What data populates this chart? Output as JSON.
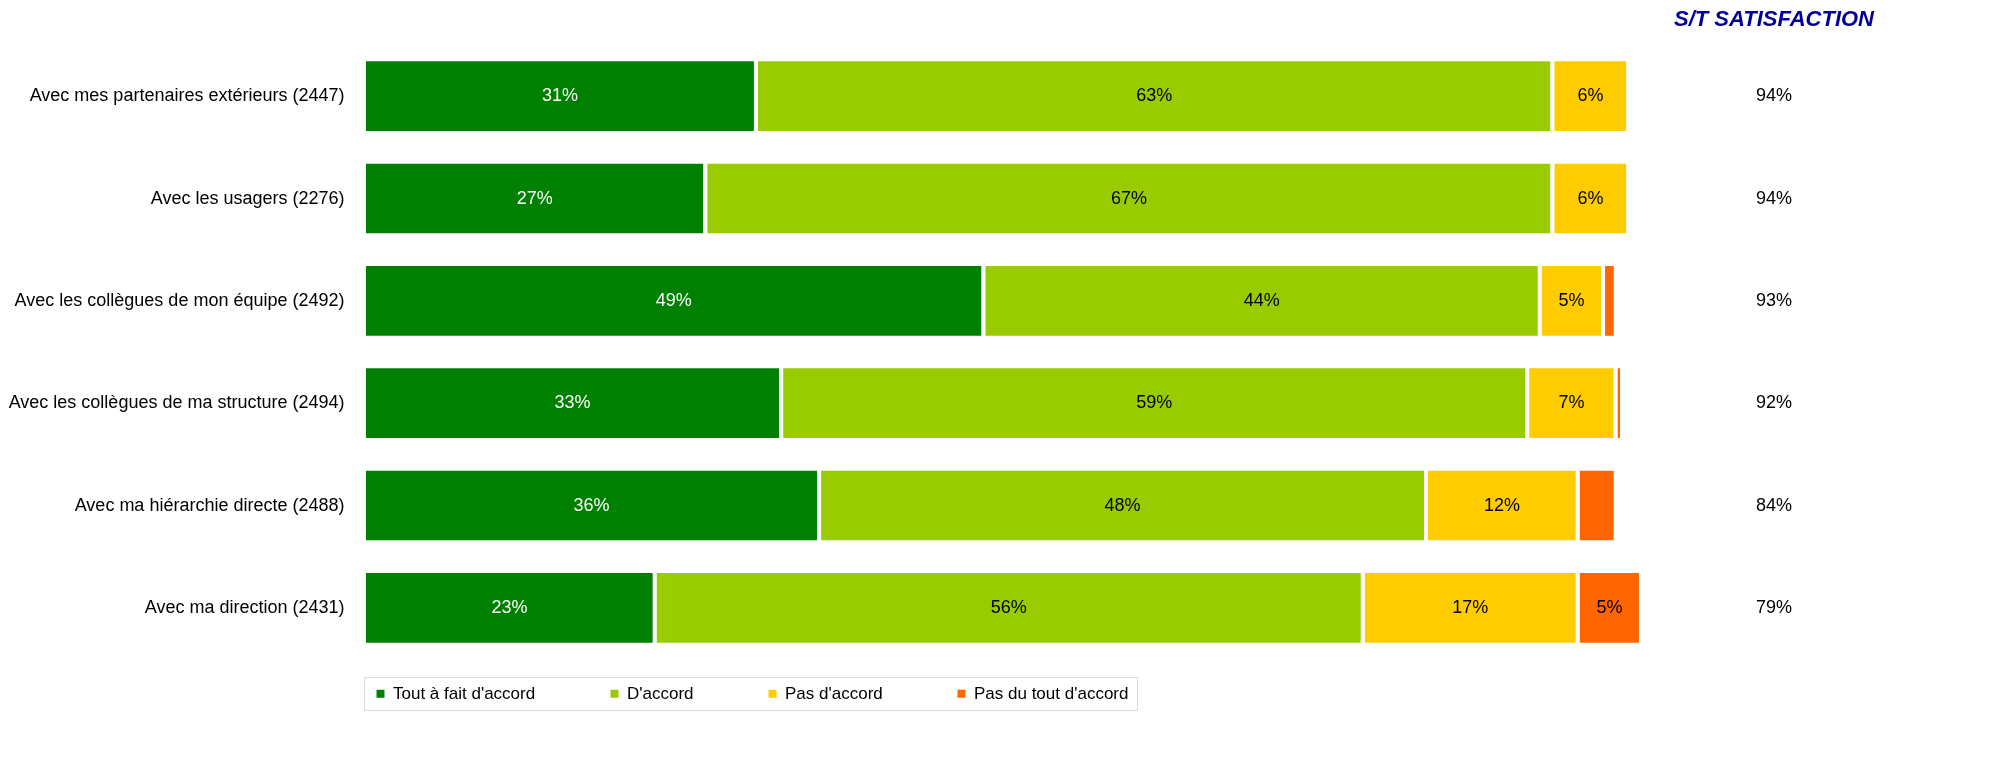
{
  "chart_data": {
    "type": "bar",
    "orientation": "horizontal",
    "stacked": true,
    "legend": "bottom",
    "categories": [
      "Avec mes partenaires extérieurs (2447)",
      "Avec les usagers (2276)",
      "Avec les collègues de mon équipe (2492)",
      "Avec les collègues de ma structure (2494)",
      "Avec ma hiérarchie directe (2488)",
      "Avec ma direction (2431)"
    ],
    "series": [
      {
        "name": "Tout à fait d'accord",
        "color": "#008000",
        "values": [
          31,
          27,
          49,
          33,
          36,
          23
        ],
        "value_labels": [
          "31%",
          "27%",
          "49%",
          "33%",
          "36%",
          "23%"
        ]
      },
      {
        "name": "D'accord",
        "color": "#99cc00",
        "values": [
          63,
          67,
          44,
          59,
          48,
          56
        ],
        "value_labels": [
          "63%",
          "67%",
          "44%",
          "59%",
          "48%",
          "56%"
        ]
      },
      {
        "name": "Pas d'accord",
        "color": "#ffcc00",
        "values": [
          6,
          6,
          5,
          7,
          12,
          17
        ],
        "value_labels": [
          "6%",
          "6%",
          "5%",
          "7%",
          "12%",
          "17%"
        ]
      },
      {
        "name": "Pas du tout d'accord",
        "color": "#ff6600",
        "values": [
          0.1,
          0.3,
          1,
          0.5,
          3,
          5
        ],
        "value_labels": [
          null,
          null,
          null,
          null,
          null,
          "5%"
        ]
      }
    ],
    "annotations": [
      "S/T SATISFACTION",
      "94%",
      "94%",
      "93%",
      "92%",
      "84%",
      "79%"
    ]
  }
}
